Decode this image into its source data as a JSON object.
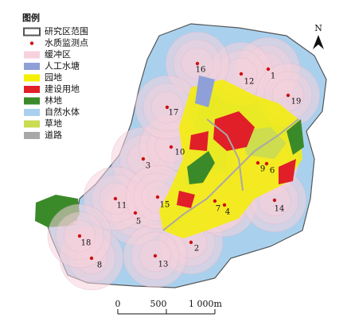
{
  "legend": {
    "title": "图例",
    "items": [
      {
        "label": "研究区范围",
        "kind": "outline",
        "color": "#555555"
      },
      {
        "label": "水质监测点",
        "kind": "dot",
        "color": "#cc1111"
      },
      {
        "label": "缓冲区",
        "kind": "fill",
        "color": "#f6d2dc"
      },
      {
        "label": "人工水塘",
        "kind": "fill",
        "color": "#8fa0d8"
      },
      {
        "label": "园地",
        "kind": "fill",
        "color": "#f5ef00"
      },
      {
        "label": "建设用地",
        "kind": "fill",
        "color": "#e01f28"
      },
      {
        "label": "林地",
        "kind": "fill",
        "color": "#3b8a2a"
      },
      {
        "label": "自然水体",
        "kind": "fill",
        "color": "#a9d1ee"
      },
      {
        "label": "草地",
        "kind": "fill",
        "color": "#c9dc52"
      },
      {
        "label": "道路",
        "kind": "fill",
        "color": "#a8a8a8"
      }
    ]
  },
  "points": [
    "1",
    "2",
    "3",
    "4",
    "5",
    "6",
    "7",
    "8",
    "9",
    "10",
    "11",
    "12",
    "13",
    "14",
    "15",
    "16",
    "17",
    "18",
    "19"
  ],
  "north": "N",
  "scale_bar": {
    "labels": [
      "0",
      "500",
      "1 000m"
    ]
  }
}
